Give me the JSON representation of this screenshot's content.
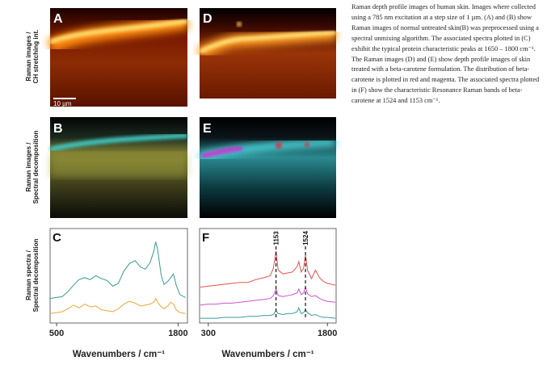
{
  "caption": "Raman depth profile images of human skin. Images where collected using a 785 nm excitation at a step size of 1 µm. (A) and (B) show Raman images of normal untreated skin(B) was preprocessed using a spectral unmixing algorithm. The associated spectra plotted in (C) exhibit the typical protein characteristic peaks at 1650 – 1800 cm⁻¹. The Raman images (D) and (E) show depth profile images of skin treated with a beta-carotene formulation. The distribution of beta-carotene is plotted in red and magenta. The associated spectra plotted in (F) show the characteristic Resonance Raman bands of beta-carotene at 1524 and 1153 cm⁻¹.",
  "row_labels": [
    [
      "Raman images /",
      "CH stretching int."
    ],
    [
      "Raman  images /",
      "Spectral decomposition"
    ],
    [
      "Raman  spectra /",
      "Spectral decomposition"
    ]
  ],
  "image_panels": [
    "A",
    "D",
    "B",
    "E"
  ],
  "scale_bar": "10 µm",
  "chart_data": [
    {
      "type": "line",
      "panel": "C",
      "xlabel": "Wavenumbers / cm⁻¹",
      "x": [
        430,
        500,
        560,
        620,
        680,
        740,
        800,
        860,
        920,
        980,
        1040,
        1100,
        1160,
        1220,
        1280,
        1340,
        1400,
        1450,
        1500,
        1540,
        1560,
        1580,
        1620,
        1650,
        1690,
        1720,
        1750,
        1780,
        1820,
        1880
      ],
      "xlim": [
        430,
        1900
      ],
      "xticks": [
        500,
        1800
      ],
      "ylim": [
        0,
        10
      ],
      "series": [
        {
          "color": "#3a9a96",
          "values": [
            2.6,
            2.7,
            2.8,
            3.3,
            4.0,
            4.6,
            4.8,
            4.6,
            5.0,
            4.7,
            4.5,
            3.9,
            4.2,
            5.5,
            6.3,
            6.6,
            5.9,
            5.7,
            6.4,
            7.6,
            8.6,
            7.8,
            5.0,
            4.1,
            4.4,
            4.8,
            5.2,
            4.0,
            3.0,
            2.7
          ]
        },
        {
          "color": "#e8a838",
          "values": [
            1.0,
            1.1,
            1.2,
            1.5,
            1.9,
            1.6,
            2.0,
            1.7,
            1.8,
            1.4,
            1.3,
            1.2,
            1.5,
            2.0,
            2.3,
            2.1,
            1.8,
            1.9,
            2.0,
            2.2,
            2.6,
            2.2,
            1.7,
            1.5,
            1.8,
            2.2,
            2.0,
            1.4,
            1.1,
            1.0
          ]
        }
      ]
    },
    {
      "type": "line",
      "panel": "F",
      "xlabel": "Wavenumbers / cm⁻¹",
      "x": [
        200,
        300,
        400,
        500,
        600,
        700,
        800,
        900,
        1000,
        1080,
        1120,
        1153,
        1180,
        1240,
        1300,
        1360,
        1420,
        1440,
        1470,
        1500,
        1524,
        1550,
        1600,
        1650,
        1700,
        1750,
        1800,
        1900
      ],
      "xlim": [
        190,
        1910
      ],
      "xticks": [
        300,
        1800
      ],
      "ylim": [
        0,
        10
      ],
      "peak_markers": [
        1153,
        1524
      ],
      "series": [
        {
          "color": "#e05050",
          "values": [
            3.8,
            3.9,
            4.0,
            4.1,
            4.2,
            4.3,
            4.3,
            4.6,
            4.8,
            5.0,
            5.8,
            7.6,
            5.6,
            5.2,
            5.3,
            5.4,
            6.0,
            6.5,
            5.4,
            5.8,
            7.2,
            5.6,
            4.7,
            5.6,
            4.8,
            4.4,
            4.2,
            4.0
          ]
        },
        {
          "color": "#d050d8",
          "values": [
            1.9,
            2.0,
            2.0,
            2.1,
            2.1,
            2.2,
            2.3,
            2.4,
            2.5,
            2.6,
            2.9,
            3.6,
            2.9,
            2.8,
            2.9,
            3.0,
            3.2,
            3.6,
            3.0,
            3.2,
            3.8,
            3.1,
            2.8,
            2.9,
            2.6,
            2.4,
            2.3,
            2.2
          ]
        },
        {
          "color": "#3a9a96",
          "values": [
            0.5,
            0.5,
            0.5,
            0.6,
            0.6,
            0.6,
            0.7,
            0.7,
            0.8,
            0.8,
            0.9,
            1.3,
            1.0,
            0.9,
            1.0,
            1.0,
            1.2,
            1.6,
            1.0,
            1.1,
            1.4,
            1.1,
            0.8,
            0.9,
            0.7,
            0.6,
            0.6,
            0.5
          ]
        }
      ]
    }
  ]
}
